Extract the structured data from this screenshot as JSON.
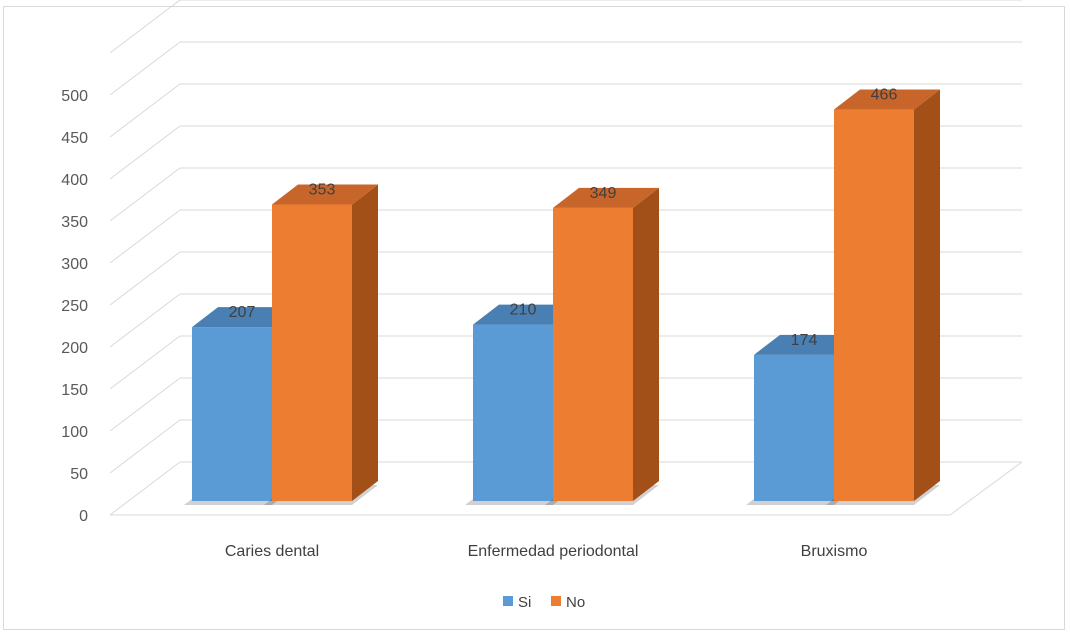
{
  "chart_data": {
    "type": "bar",
    "categories": [
      "Caries dental",
      "Enfermedad periodontal",
      "Bruxismo"
    ],
    "series": [
      {
        "name": "Si",
        "values": [
          207,
          210,
          174
        ],
        "color": "#5b9bd5",
        "top_color": "#4a7fb3",
        "side_color": "#3d6e9e"
      },
      {
        "name": "No",
        "values": [
          353,
          349,
          466
        ],
        "color": "#ed7d31",
        "top_color": "#c8652a",
        "side_color": "#a35018"
      }
    ],
    "ylim": [
      0,
      500
    ],
    "yticks": [
      "0",
      "50",
      "100",
      "150",
      "200",
      "250",
      "300",
      "350",
      "400",
      "450",
      "500"
    ],
    "grid": true,
    "legend_position": "bottom",
    "style": "3d-clustered-column"
  }
}
